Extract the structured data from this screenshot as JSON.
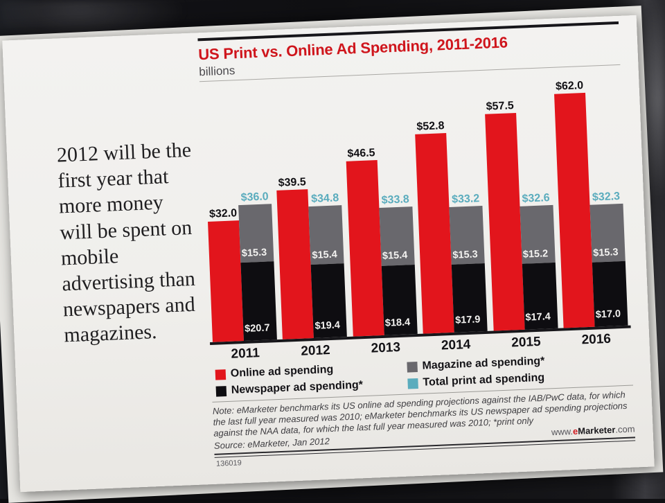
{
  "quote_panel": {
    "text": "2012 will be the first year that more money will be spent on mobile advertising than newspapers and magazines."
  },
  "chart_data": {
    "type": "bar",
    "title": "US Print vs. Online Ad Spending, 2011-2016",
    "subtitle": "billions",
    "categories": [
      "2011",
      "2012",
      "2013",
      "2014",
      "2015",
      "2016"
    ],
    "series": [
      {
        "name": "Online ad spending",
        "color": "#e2151c",
        "values": [
          32.0,
          39.5,
          46.5,
          52.8,
          57.5,
          62.0
        ]
      },
      {
        "name": "Newspaper ad spending*",
        "color": "#0e0d11",
        "values": [
          20.7,
          19.4,
          18.4,
          17.9,
          17.4,
          17.0
        ]
      },
      {
        "name": "Magazine ad spending*",
        "color": "#69686d",
        "values": [
          15.3,
          15.4,
          15.4,
          15.3,
          15.2,
          15.3
        ]
      },
      {
        "name": "Total print ad spending",
        "color": "#5aacbd",
        "values": [
          36.0,
          34.8,
          33.8,
          33.2,
          32.6,
          32.3
        ]
      }
    ],
    "value_prefix": "$",
    "ylim": [
      0,
      68
    ],
    "grid": false,
    "legend_position": "bottom",
    "note": "Note: eMarketer benchmarks its US online ad spending projections against the IAB/PwC data, for which the last full year measured was 2010; eMarketer benchmarks its US newspaper ad spending projections against the NAA data, for which the last full year measured was 2010; *print only",
    "source": "Source: eMarketer, Jan 2012",
    "footer": {
      "chart_id": "136019",
      "website": "www.eMarketer.com"
    }
  }
}
